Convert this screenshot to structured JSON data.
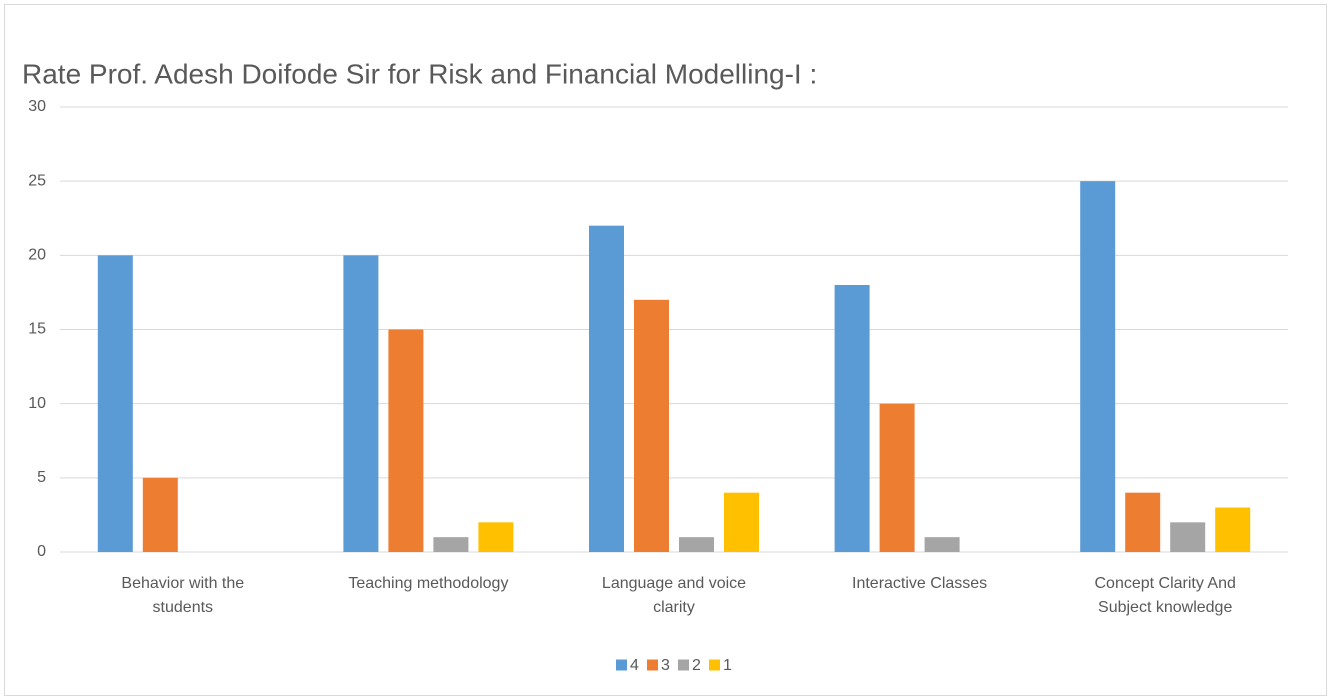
{
  "chart_data": {
    "type": "bar",
    "title": "Rate Prof. Adesh Doifode Sir for Risk and Financial Modelling-I :",
    "categories": [
      "Behavior with the students",
      "Teaching methodology",
      "Language and voice clarity",
      "Interactive Classes",
      "Concept Clarity And Subject knowledge"
    ],
    "series": [
      {
        "name": "4",
        "color": "#5b9bd5",
        "values": [
          20,
          20,
          22,
          18,
          25
        ]
      },
      {
        "name": "3",
        "color": "#ed7d31",
        "values": [
          5,
          15,
          17,
          10,
          4
        ]
      },
      {
        "name": "2",
        "color": "#a5a5a5",
        "values": [
          0,
          1,
          1,
          1,
          2
        ]
      },
      {
        "name": "1",
        "color": "#ffc000",
        "values": [
          0,
          2,
          4,
          0,
          3
        ]
      }
    ],
    "ylim": [
      0,
      30
    ],
    "yticks": [
      0,
      5,
      10,
      15,
      20,
      25,
      30
    ],
    "grid": true,
    "legend": "bottom"
  }
}
